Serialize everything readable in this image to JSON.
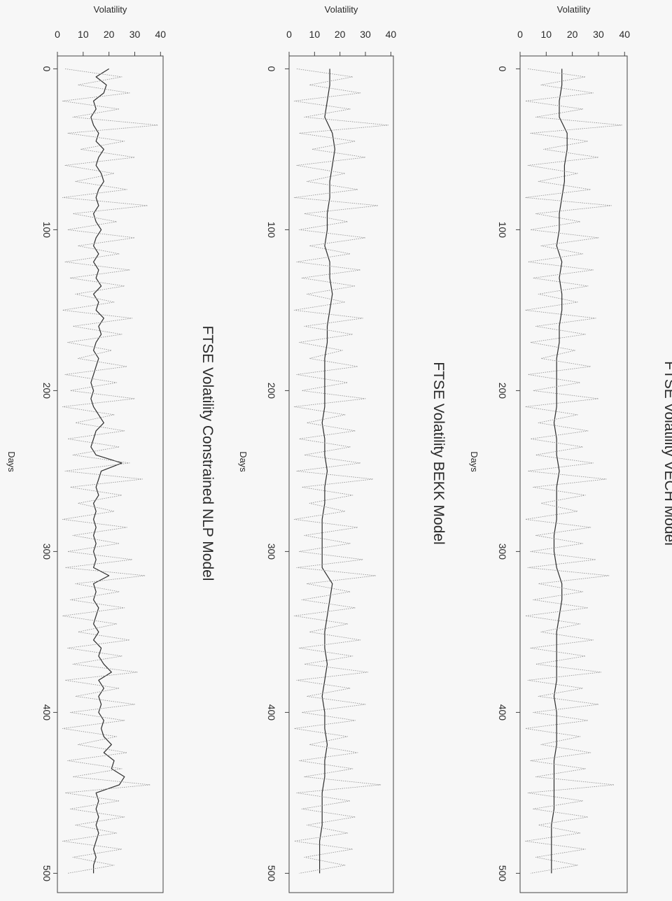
{
  "chart_data": [
    {
      "type": "line",
      "title": "FTSE Volatility Constrained NLP Model",
      "xlabel": "Days",
      "ylabel": "Volatility",
      "xlim": [
        -8,
        512
      ],
      "ylim": [
        0,
        41
      ],
      "x_ticks": [
        0,
        100,
        200,
        300,
        400,
        500
      ],
      "y_ticks": [
        0,
        10,
        20,
        30,
        40
      ],
      "grid": false,
      "orientation": "rotated 90 degrees clockwise",
      "series": [
        {
          "style": "solid",
          "x": [
            0,
            5,
            10,
            15,
            20,
            25,
            30,
            35,
            40,
            45,
            50,
            55,
            60,
            65,
            70,
            75,
            80,
            85,
            90,
            95,
            100,
            105,
            110,
            115,
            120,
            125,
            130,
            135,
            140,
            145,
            150,
            155,
            160,
            165,
            170,
            175,
            180,
            185,
            190,
            195,
            200,
            205,
            210,
            215,
            220,
            225,
            230,
            235,
            240,
            245,
            250,
            255,
            260,
            265,
            270,
            275,
            280,
            285,
            290,
            295,
            300,
            305,
            310,
            315,
            320,
            325,
            330,
            335,
            340,
            345,
            350,
            355,
            360,
            365,
            370,
            375,
            380,
            385,
            390,
            395,
            400,
            405,
            410,
            415,
            420,
            425,
            430,
            435,
            440,
            445,
            450,
            455,
            460,
            465,
            470,
            475,
            480,
            485,
            490,
            495,
            500
          ],
          "values": [
            20,
            15,
            19,
            18,
            14,
            15,
            13,
            14,
            16,
            15,
            18,
            16,
            15,
            17,
            18,
            16,
            15,
            16,
            14,
            15,
            17,
            15,
            14,
            16,
            14,
            16,
            15,
            17,
            14,
            16,
            15,
            18,
            16,
            17,
            15,
            14,
            16,
            15,
            14,
            13,
            14,
            13,
            14,
            16,
            18,
            15,
            14,
            13,
            15,
            25,
            17,
            16,
            15,
            16,
            14,
            15,
            14,
            15,
            14,
            15,
            14,
            15,
            14,
            20,
            14,
            15,
            14,
            16,
            15,
            14,
            16,
            14,
            17,
            16,
            18,
            21,
            16,
            18,
            16,
            17,
            16,
            18,
            17,
            18,
            21,
            18,
            22,
            21,
            26,
            24,
            15,
            16,
            15,
            16,
            15,
            16,
            15,
            14,
            15,
            14,
            14
          ]
        },
        {
          "style": "dotted",
          "x": [
            0,
            5,
            10,
            15,
            20,
            25,
            30,
            35,
            40,
            45,
            50,
            55,
            60,
            65,
            70,
            75,
            80,
            85,
            90,
            95,
            100,
            105,
            110,
            115,
            120,
            125,
            130,
            135,
            140,
            145,
            150,
            155,
            160,
            165,
            170,
            175,
            180,
            185,
            190,
            195,
            200,
            205,
            210,
            215,
            220,
            225,
            230,
            235,
            240,
            245,
            250,
            255,
            260,
            265,
            270,
            275,
            280,
            285,
            290,
            295,
            300,
            305,
            310,
            315,
            320,
            325,
            330,
            335,
            340,
            345,
            350,
            355,
            360,
            365,
            370,
            375,
            380,
            385,
            390,
            395,
            400,
            405,
            410,
            415,
            420,
            425,
            430,
            435,
            440,
            445,
            450,
            455,
            460,
            465,
            470,
            475,
            480,
            485,
            490,
            495,
            500
          ],
          "values": [
            3,
            25,
            8,
            28,
            2,
            24,
            6,
            39,
            4,
            26,
            9,
            30,
            3,
            22,
            7,
            27,
            2,
            35,
            6,
            23,
            4,
            30,
            8,
            24,
            3,
            28,
            5,
            26,
            7,
            22,
            2,
            29,
            6,
            25,
            4,
            21,
            8,
            27,
            3,
            23,
            5,
            30,
            2,
            22,
            7,
            26,
            4,
            24,
            6,
            28,
            3,
            33,
            5,
            25,
            8,
            22,
            2,
            27,
            6,
            24,
            4,
            29,
            3,
            34,
            7,
            24,
            5,
            26,
            2,
            23,
            8,
            28,
            4,
            25,
            6,
            31,
            3,
            24,
            7,
            30,
            5,
            26,
            2,
            23,
            8,
            27,
            4,
            25,
            6,
            36,
            3,
            24,
            5,
            26,
            7,
            23,
            2,
            25,
            6,
            22,
            4
          ]
        }
      ]
    },
    {
      "type": "line",
      "title": "FTSE Volatility BEKK Model",
      "xlabel": "Days",
      "ylabel": "Volatility",
      "xlim": [
        -8,
        512
      ],
      "ylim": [
        0,
        41
      ],
      "x_ticks": [
        0,
        100,
        200,
        300,
        400,
        500
      ],
      "y_ticks": [
        0,
        10,
        20,
        30,
        40
      ],
      "grid": false,
      "orientation": "rotated 90 degrees clockwise",
      "series": [
        {
          "style": "solid",
          "x": [
            0,
            10,
            20,
            30,
            40,
            50,
            60,
            70,
            80,
            90,
            100,
            110,
            120,
            130,
            140,
            150,
            160,
            170,
            180,
            190,
            200,
            210,
            220,
            230,
            240,
            250,
            260,
            270,
            280,
            290,
            300,
            310,
            320,
            330,
            340,
            350,
            360,
            370,
            380,
            390,
            400,
            410,
            420,
            430,
            440,
            450,
            460,
            470,
            480,
            490,
            500
          ],
          "values": [
            16,
            16,
            15,
            14,
            17,
            18,
            17,
            16,
            16,
            15,
            15,
            14,
            16,
            16,
            17,
            16,
            15,
            15,
            14,
            14,
            14,
            14,
            13,
            14,
            14,
            15,
            14,
            14,
            13,
            13,
            13,
            13,
            17,
            16,
            15,
            14,
            14,
            15,
            14,
            13,
            14,
            14,
            15,
            14,
            14,
            13,
            13,
            13,
            12,
            12,
            12
          ]
        },
        {
          "style": "dotted",
          "x": [
            0,
            5,
            10,
            15,
            20,
            25,
            30,
            35,
            40,
            45,
            50,
            55,
            60,
            65,
            70,
            75,
            80,
            85,
            90,
            95,
            100,
            105,
            110,
            115,
            120,
            125,
            130,
            135,
            140,
            145,
            150,
            155,
            160,
            165,
            170,
            175,
            180,
            185,
            190,
            195,
            200,
            205,
            210,
            215,
            220,
            225,
            230,
            235,
            240,
            245,
            250,
            255,
            260,
            265,
            270,
            275,
            280,
            285,
            290,
            295,
            300,
            305,
            310,
            315,
            320,
            325,
            330,
            335,
            340,
            345,
            350,
            355,
            360,
            365,
            370,
            375,
            380,
            385,
            390,
            395,
            400,
            405,
            410,
            415,
            420,
            425,
            430,
            435,
            440,
            445,
            450,
            455,
            460,
            465,
            470,
            475,
            480,
            485,
            490,
            495,
            500
          ],
          "values": [
            3,
            25,
            8,
            28,
            2,
            24,
            6,
            39,
            4,
            26,
            9,
            30,
            3,
            22,
            7,
            27,
            2,
            35,
            6,
            23,
            4,
            30,
            8,
            24,
            3,
            28,
            5,
            26,
            7,
            22,
            2,
            29,
            6,
            25,
            4,
            21,
            8,
            27,
            3,
            23,
            5,
            30,
            2,
            22,
            7,
            26,
            4,
            24,
            6,
            28,
            3,
            33,
            5,
            25,
            8,
            22,
            2,
            27,
            6,
            24,
            4,
            29,
            3,
            34,
            7,
            24,
            5,
            26,
            2,
            23,
            8,
            28,
            4,
            25,
            6,
            31,
            3,
            24,
            7,
            30,
            5,
            26,
            2,
            23,
            8,
            27,
            4,
            25,
            6,
            36,
            3,
            24,
            5,
            26,
            7,
            23,
            2,
            25,
            6,
            22,
            4
          ]
        }
      ]
    },
    {
      "type": "line",
      "title": "FTSE Volatility VECH Model",
      "xlabel": "Days",
      "ylabel": "Volatility",
      "xlim": [
        -8,
        512
      ],
      "ylim": [
        0,
        41
      ],
      "x_ticks": [
        0,
        100,
        200,
        300,
        400,
        500
      ],
      "y_ticks": [
        0,
        10,
        20,
        30,
        40
      ],
      "grid": false,
      "orientation": "rotated 90 degrees clockwise",
      "series": [
        {
          "style": "solid",
          "x": [
            0,
            10,
            20,
            30,
            40,
            50,
            60,
            70,
            80,
            90,
            100,
            110,
            120,
            130,
            140,
            150,
            160,
            170,
            180,
            190,
            200,
            210,
            220,
            230,
            240,
            250,
            260,
            270,
            280,
            290,
            300,
            310,
            320,
            330,
            340,
            350,
            360,
            370,
            380,
            390,
            400,
            410,
            420,
            430,
            440,
            450,
            460,
            470,
            480,
            490,
            500
          ],
          "values": [
            16,
            16,
            15,
            15,
            18,
            18,
            17,
            17,
            16,
            15,
            15,
            14,
            16,
            15,
            16,
            16,
            15,
            15,
            14,
            14,
            14,
            14,
            13,
            14,
            14,
            15,
            14,
            14,
            14,
            13,
            13,
            14,
            16,
            16,
            15,
            14,
            14,
            14,
            14,
            13,
            14,
            14,
            14,
            13,
            13,
            13,
            13,
            12,
            12,
            12,
            12
          ]
        },
        {
          "style": "dotted",
          "x": [
            0,
            5,
            10,
            15,
            20,
            25,
            30,
            35,
            40,
            45,
            50,
            55,
            60,
            65,
            70,
            75,
            80,
            85,
            90,
            95,
            100,
            105,
            110,
            115,
            120,
            125,
            130,
            135,
            140,
            145,
            150,
            155,
            160,
            165,
            170,
            175,
            180,
            185,
            190,
            195,
            200,
            205,
            210,
            215,
            220,
            225,
            230,
            235,
            240,
            245,
            250,
            255,
            260,
            265,
            270,
            275,
            280,
            285,
            290,
            295,
            300,
            305,
            310,
            315,
            320,
            325,
            330,
            335,
            340,
            345,
            350,
            355,
            360,
            365,
            370,
            375,
            380,
            385,
            390,
            395,
            400,
            405,
            410,
            415,
            420,
            425,
            430,
            435,
            440,
            445,
            450,
            455,
            460,
            465,
            470,
            475,
            480,
            485,
            490,
            495,
            500
          ],
          "values": [
            3,
            25,
            8,
            28,
            2,
            24,
            6,
            39,
            4,
            26,
            9,
            30,
            3,
            22,
            7,
            27,
            2,
            35,
            6,
            23,
            4,
            30,
            8,
            24,
            3,
            28,
            5,
            26,
            7,
            22,
            2,
            29,
            6,
            25,
            4,
            21,
            8,
            27,
            3,
            23,
            5,
            30,
            2,
            22,
            7,
            26,
            4,
            24,
            6,
            28,
            3,
            33,
            5,
            25,
            8,
            22,
            2,
            27,
            6,
            24,
            4,
            29,
            3,
            34,
            7,
            24,
            5,
            26,
            2,
            23,
            8,
            28,
            4,
            25,
            6,
            31,
            3,
            24,
            7,
            30,
            5,
            26,
            2,
            23,
            8,
            27,
            4,
            25,
            6,
            36,
            3,
            24,
            5,
            26,
            7,
            23,
            2,
            25,
            6,
            22,
            4
          ]
        }
      ]
    }
  ]
}
